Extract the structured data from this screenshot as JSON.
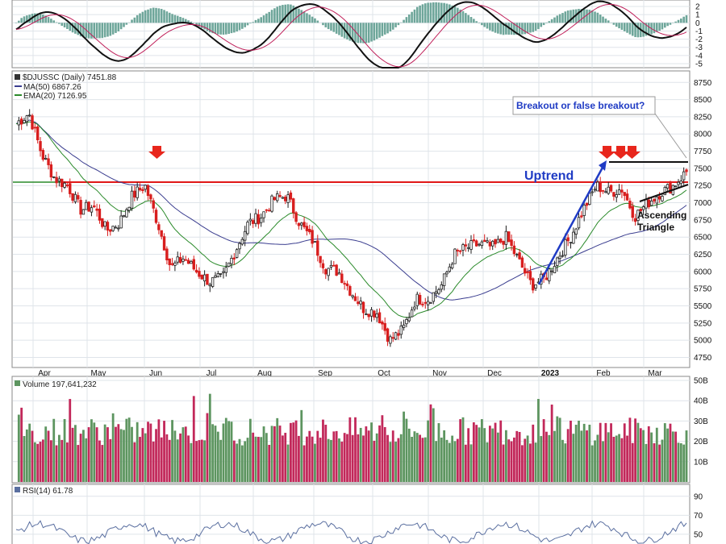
{
  "colors": {
    "up_candle": "#1e1e1e",
    "down_candle": "#d81e1e",
    "ma50": "#3a3d8f",
    "ema20": "#2a8a2a",
    "resistance": "#e01818",
    "trend": "#1f3bc4",
    "vol_up": "#5d9560",
    "vol_down": "#c2285a",
    "macd_hist": "#6ea69a",
    "grid": "#dfe4ea",
    "rsi": "#5a6fa0"
  },
  "panels": {
    "price": {
      "symbol_label": "$DJUSSC (Daily) 7451.88",
      "ma50_label": "MA(50) 6867.26",
      "ema20_label": "EMA(20) 7126.95"
    },
    "volume": {
      "label": "Volume 197,641,232"
    },
    "rsi": {
      "label": "RSI(14) 61.78"
    }
  },
  "annotations": {
    "callout": "Breakout or false breakout?",
    "uptrend": "Uptrend",
    "triangle_line1": "Ascending",
    "triangle_line2": "Triangle"
  },
  "chart_data": [
    {
      "type": "bar",
      "name": "MACD panel (histogram + lines)",
      "y_ticks": [
        "2",
        "1",
        "0",
        "-1",
        "-2",
        "-3",
        "-4",
        "-5"
      ]
    },
    {
      "type": "line",
      "name": "Price candlestick",
      "x_ticks": [
        "Apr",
        "May",
        "Jun",
        "Jul",
        "Aug",
        "Sep",
        "Oct",
        "Nov",
        "Dec",
        "2023",
        "Feb",
        "Mar"
      ],
      "y_ticks": [
        "8750",
        "8500",
        "8250",
        "8000",
        "7750",
        "7500",
        "7250",
        "7000",
        "6750",
        "6500",
        "6250",
        "6000",
        "5750",
        "5500",
        "5250",
        "5000",
        "4750"
      ],
      "ylim": [
        4650,
        8800
      ],
      "resistance_level": 7300,
      "close_path": [
        {
          "x": "Mar 25",
          "y": 8150
        },
        {
          "x": "Apr 1",
          "y": 8300
        },
        {
          "x": "Apr 8",
          "y": 7700
        },
        {
          "x": "Apr 15",
          "y": 7350
        },
        {
          "x": "Apr 22",
          "y": 7250
        },
        {
          "x": "Apr 29",
          "y": 6900
        },
        {
          "x": "May 6",
          "y": 6950
        },
        {
          "x": "May 13",
          "y": 6600
        },
        {
          "x": "May 20",
          "y": 6700
        },
        {
          "x": "May 27",
          "y": 7100
        },
        {
          "x": "Jun 3",
          "y": 7250
        },
        {
          "x": "Jun 10",
          "y": 6700
        },
        {
          "x": "Jun 17",
          "y": 6050
        },
        {
          "x": "Jun 24",
          "y": 6200
        },
        {
          "x": "Jul 1",
          "y": 6000
        },
        {
          "x": "Jul 8",
          "y": 5850
        },
        {
          "x": "Jul 15",
          "y": 5900
        },
        {
          "x": "Jul 22",
          "y": 6300
        },
        {
          "x": "Jul 29",
          "y": 6700
        },
        {
          "x": "Aug 5",
          "y": 6800
        },
        {
          "x": "Aug 12",
          "y": 7050
        },
        {
          "x": "Aug 19",
          "y": 7100
        },
        {
          "x": "Aug 26",
          "y": 6700
        },
        {
          "x": "Sep 2",
          "y": 6450
        },
        {
          "x": "Sep 9",
          "y": 6050
        },
        {
          "x": "Sep 16",
          "y": 6000
        },
        {
          "x": "Sep 23",
          "y": 5700
        },
        {
          "x": "Sep 30",
          "y": 5450
        },
        {
          "x": "Oct 7",
          "y": 5400
        },
        {
          "x": "Oct 14",
          "y": 5000
        },
        {
          "x": "Oct 21",
          "y": 5150
        },
        {
          "x": "Oct 28",
          "y": 5600
        },
        {
          "x": "Nov 4",
          "y": 5600
        },
        {
          "x": "Nov 11",
          "y": 5800
        },
        {
          "x": "Nov 18",
          "y": 6250
        },
        {
          "x": "Nov 25",
          "y": 6350
        },
        {
          "x": "Dec 2",
          "y": 6400
        },
        {
          "x": "Dec 9",
          "y": 6350
        },
        {
          "x": "Dec 16",
          "y": 6500
        },
        {
          "x": "Dec 23",
          "y": 6150
        },
        {
          "x": "Dec 30",
          "y": 5800
        },
        {
          "x": "Jan 6",
          "y": 5900
        },
        {
          "x": "Jan 13",
          "y": 6200
        },
        {
          "x": "Jan 20",
          "y": 6500
        },
        {
          "x": "Jan 27",
          "y": 6900
        },
        {
          "x": "Feb 3",
          "y": 7250
        },
        {
          "x": "Feb 10",
          "y": 7150
        },
        {
          "x": "Feb 17",
          "y": 7200
        },
        {
          "x": "Feb 24",
          "y": 6800
        },
        {
          "x": "Mar 3",
          "y": 7000
        },
        {
          "x": "Mar 10",
          "y": 7150
        },
        {
          "x": "Mar 17",
          "y": 7250
        },
        {
          "x": "Mar 22",
          "y": 7450
        }
      ],
      "series": [
        {
          "name": "MA(50)",
          "last": 6867.26
        },
        {
          "name": "EMA(20)",
          "last": 7126.95
        }
      ]
    },
    {
      "type": "bar",
      "name": "Volume",
      "y_ticks": [
        "50B",
        "40B",
        "30B",
        "20B",
        "10B"
      ]
    },
    {
      "type": "line",
      "name": "RSI(14)",
      "y_ticks": [
        "90",
        "70",
        "50"
      ],
      "last": 61.78
    }
  ]
}
